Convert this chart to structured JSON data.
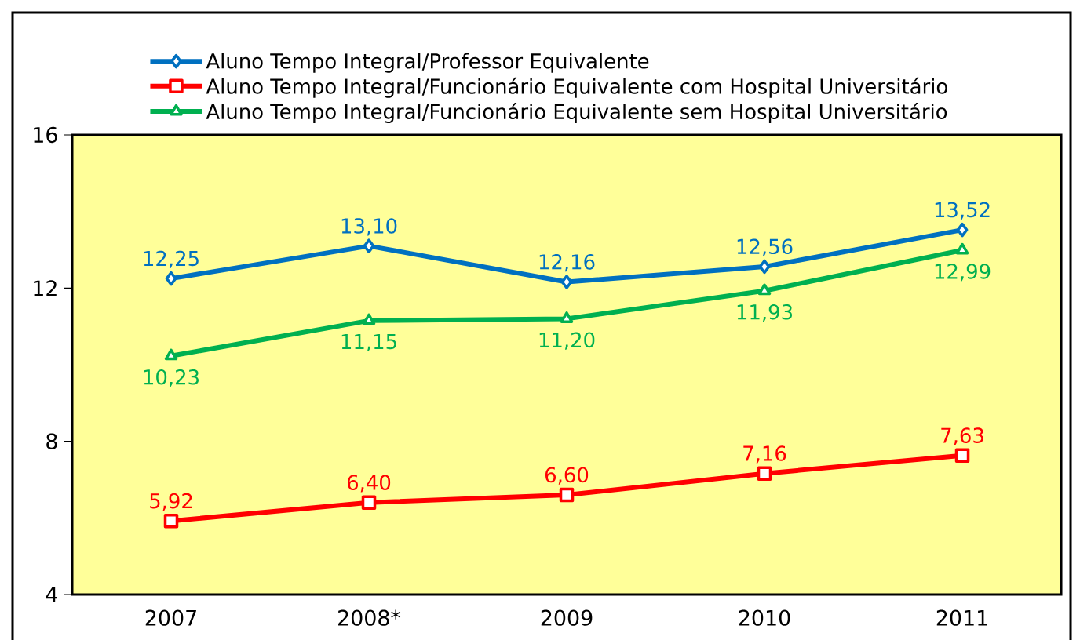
{
  "chart_data": {
    "type": "line",
    "categories": [
      "2007",
      "2008*",
      "2009",
      "2010",
      "2011"
    ],
    "series": [
      {
        "name": "Aluno Tempo Integral/Professor Equivalente",
        "color": "#0070c0",
        "marker": "diamond",
        "values": [
          12.25,
          13.1,
          12.16,
          12.56,
          13.52
        ],
        "value_labels": [
          "12,25",
          "13,10",
          "12,16",
          "12,56",
          "13,52"
        ]
      },
      {
        "name": "Aluno Tempo Integral/Funcionário  Equivalente  com Hospital  Universitário",
        "color": "#ff0000",
        "marker": "square",
        "values": [
          5.92,
          6.4,
          6.6,
          7.16,
          7.63
        ],
        "value_labels": [
          "5,92",
          "6,40",
          "6,60",
          "7,16",
          "7,63"
        ]
      },
      {
        "name": "Aluno Tempo Integral/Funcionário  Equivalente  sem Hospital  Universitário",
        "color": "#00b050",
        "marker": "triangle",
        "values": [
          10.23,
          11.15,
          11.2,
          11.93,
          12.99
        ],
        "value_labels": [
          "10,23",
          "11,15",
          "11,20",
          "11,93",
          "12,99"
        ]
      }
    ],
    "ylim": [
      4,
      16
    ],
    "yticks": [
      4,
      8,
      12,
      16
    ],
    "legend": "top",
    "grid": false
  }
}
